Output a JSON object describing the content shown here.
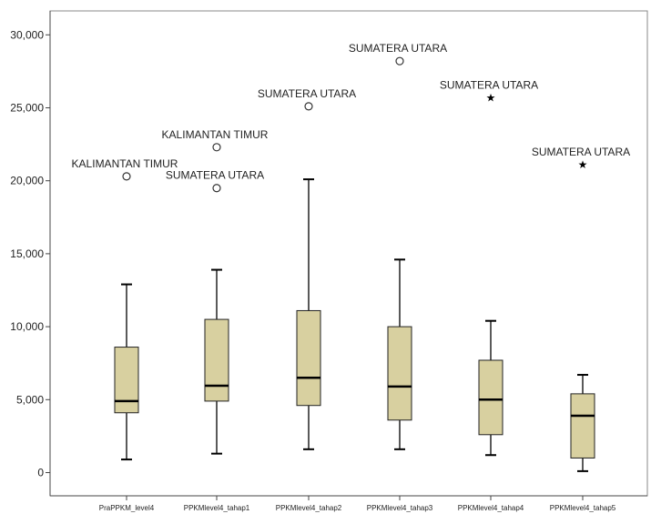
{
  "chart_data": {
    "type": "boxplot",
    "title": "",
    "xlabel": "",
    "ylabel": "",
    "ylim": [
      -1500,
      31000
    ],
    "yticks": [
      0,
      5000,
      10000,
      15000,
      20000,
      25000,
      30000
    ],
    "ytick_labels": [
      "0",
      "5,000",
      "10,000",
      "15,000",
      "20,000",
      "25,000",
      "30,000"
    ],
    "grid": false,
    "box_color": "#d8d0a0",
    "categories": [
      "PraPPKM_level4",
      "PPKMlevel4_tahap1",
      "PPKMlevel4_tahap2",
      "PPKMlevel4_tahap3",
      "PPKMlevel4_tahap4",
      "PPKMlevel4_tahap5"
    ],
    "boxes": [
      {
        "whisker_low": 900,
        "q1": 4100,
        "median": 4900,
        "q3": 8600,
        "whisker_high": 12900
      },
      {
        "whisker_low": 1300,
        "q1": 4900,
        "median": 5950,
        "q3": 10500,
        "whisker_high": 13900
      },
      {
        "whisker_low": 1600,
        "q1": 4600,
        "median": 6500,
        "q3": 11100,
        "whisker_high": 20100
      },
      {
        "whisker_low": 1600,
        "q1": 3600,
        "median": 5900,
        "q3": 10000,
        "whisker_high": 14600
      },
      {
        "whisker_low": 1200,
        "q1": 2600,
        "median": 5000,
        "q3": 7700,
        "whisker_high": 10400
      },
      {
        "whisker_low": 100,
        "q1": 1000,
        "median": 3900,
        "q3": 5400,
        "whisker_high": 6700
      }
    ],
    "outliers": [
      {
        "category": 0,
        "value": 20300,
        "label": "KALIMANTAN TIMUR",
        "marker": "circle"
      },
      {
        "category": 1,
        "value": 22300,
        "label": "KALIMANTAN TIMUR",
        "marker": "circle"
      },
      {
        "category": 1,
        "value": 19500,
        "label": "SUMATERA UTARA",
        "marker": "circle"
      },
      {
        "category": 2,
        "value": 25100,
        "label": "SUMATERA UTARA",
        "marker": "circle"
      },
      {
        "category": 3,
        "value": 28200,
        "label": "SUMATERA UTARA",
        "marker": "circle"
      },
      {
        "category": 4,
        "value": 25700,
        "label": "SUMATERA UTARA",
        "marker": "star"
      },
      {
        "category": 5,
        "value": 21100,
        "label": "SUMATERA UTARA",
        "marker": "star"
      }
    ]
  }
}
